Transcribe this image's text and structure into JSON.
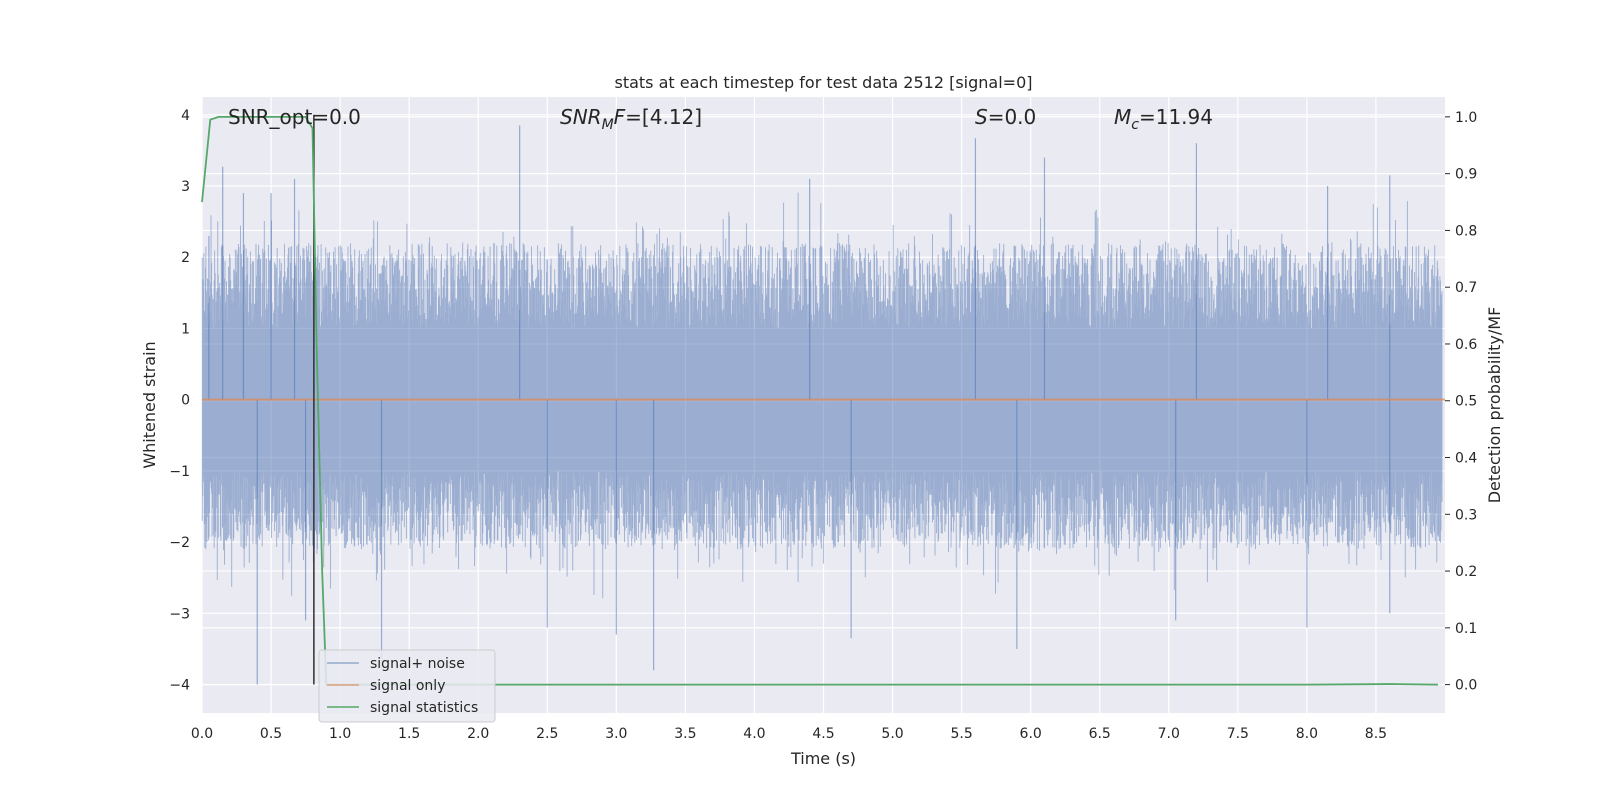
{
  "chart_data": {
    "type": "line",
    "title": "stats at each timestep for test data 2512 [signal=0]",
    "xlabel": "Time (s)",
    "ylabel": "Whitened strain",
    "y2label": "Detection probability/MF",
    "xlim": [
      0.0,
      9.0
    ],
    "ylim": [
      -4.4,
      4.25
    ],
    "y2lim": [
      -0.05,
      1.035
    ],
    "x_ticks": [
      0.0,
      0.5,
      1.0,
      1.5,
      2.0,
      2.5,
      3.0,
      3.5,
      4.0,
      4.5,
      5.0,
      5.5,
      6.0,
      6.5,
      7.0,
      7.5,
      8.0,
      8.5
    ],
    "y_ticks": [
      -4,
      -3,
      -2,
      -1,
      0,
      1,
      2,
      3,
      4
    ],
    "y_tick_labels": [
      "−4",
      "−3",
      "−2",
      "−1",
      "0",
      "1",
      "2",
      "3",
      "4"
    ],
    "y2_ticks": [
      0.0,
      0.1,
      0.2,
      0.3,
      0.4,
      0.5,
      0.6,
      0.7,
      0.8,
      0.9,
      1.0
    ],
    "grid": true,
    "annotations": {
      "snr_opt": "SNR_opt=0.0",
      "snr_mf_symbol": "SNR",
      "snr_mf_sub": "M",
      "snr_mf_rest": "F",
      "snr_mf_value": "=[4.12]",
      "s_symbol": "S",
      "s_value": "=0.0",
      "mc_symbol": "M",
      "mc_sub": "c",
      "mc_value": "=11.94"
    },
    "legend": {
      "position": "lower-left",
      "entries": [
        "signal+ noise",
        "signal only",
        "signal statistics"
      ]
    },
    "series": [
      {
        "name": "signal+ noise",
        "color": "#4c72b0",
        "axis": "left",
        "kind": "noise",
        "peaks": [
          {
            "x": 0.05,
            "y": 2.3
          },
          {
            "x": 0.15,
            "y": 3.27
          },
          {
            "x": 0.3,
            "y": 2.9
          },
          {
            "x": 0.4,
            "y": -4.0
          },
          {
            "x": 0.5,
            "y": 2.9
          },
          {
            "x": 0.67,
            "y": 3.1
          },
          {
            "x": 0.75,
            "y": -3.1
          },
          {
            "x": 1.3,
            "y": -3.8
          },
          {
            "x": 2.3,
            "y": 3.85
          },
          {
            "x": 2.5,
            "y": -3.2
          },
          {
            "x": 3.0,
            "y": -3.3
          },
          {
            "x": 3.27,
            "y": -3.8
          },
          {
            "x": 4.4,
            "y": 3.1
          },
          {
            "x": 4.7,
            "y": -3.35
          },
          {
            "x": 5.6,
            "y": 3.67
          },
          {
            "x": 5.9,
            "y": -3.5
          },
          {
            "x": 6.1,
            "y": 3.4
          },
          {
            "x": 7.05,
            "y": -3.1
          },
          {
            "x": 7.2,
            "y": 3.6
          },
          {
            "x": 8.0,
            "y": -3.2
          },
          {
            "x": 8.15,
            "y": 3.0
          },
          {
            "x": 8.6,
            "y": 3.15
          },
          {
            "x": 8.6,
            "y": -3.0
          }
        ]
      },
      {
        "name": "signal only",
        "color": "#dd8452",
        "axis": "left",
        "x": [
          0.0,
          9.0
        ],
        "y": [
          0.0,
          0.0
        ]
      },
      {
        "name": "signal statistics",
        "color": "#55a868",
        "axis": "right",
        "x": [
          0.0,
          0.06,
          0.12,
          0.3,
          0.5,
          0.65,
          0.75,
          0.8,
          0.83,
          0.87,
          0.9,
          0.95,
          1.0,
          2.0,
          3.0,
          4.0,
          5.0,
          6.0,
          7.0,
          8.0,
          8.6,
          8.95
        ],
        "y": [
          0.85,
          0.995,
          1.0,
          1.0,
          1.0,
          1.0,
          1.0,
          0.98,
          0.6,
          0.2,
          0.0,
          0.0,
          0.0,
          0.0,
          0.0,
          0.0,
          0.0,
          0.0,
          0.0,
          0.0,
          0.001,
          0.0
        ]
      }
    ],
    "vline": {
      "x": 0.81,
      "color": "#303030"
    },
    "colors": {
      "background": "#eaeaf2",
      "grid": "#ffffff"
    }
  }
}
